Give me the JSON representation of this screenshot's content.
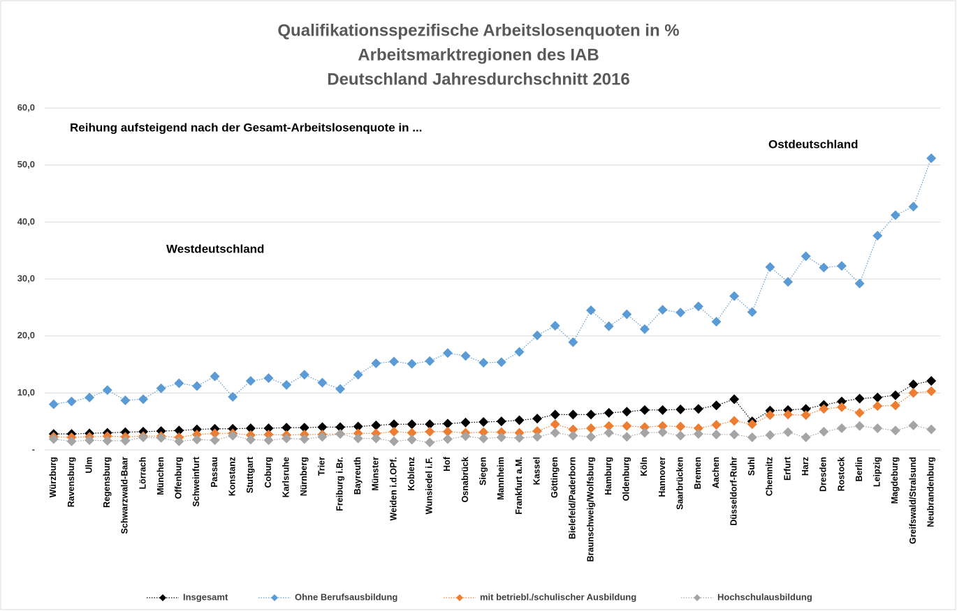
{
  "chart_data": {
    "type": "line",
    "title": [
      "Qualifikationsspezifische Arbeitslosenquoten in %",
      "Arbeitsmarktregionen des IAB",
      "Deutschland Jahresdurchschnitt 2016"
    ],
    "annotations": [
      "Reihung aufsteigend nach der Gesamt-Arbeitslosenquote in ...",
      "Westdeutschland",
      "Ostdeutschland"
    ],
    "categories": [
      "Würzburg",
      "Ravensburg",
      "Ulm",
      "Regensburg",
      "Schwarzwald-Baar",
      "Lörrach",
      "München",
      "Offenburg",
      "Schweinfurt",
      "Passau",
      "Konstanz",
      "Stuttgart",
      "Coburg",
      "Karlsruhe",
      "Nürnberg",
      "Trier",
      "Freiburg i.Br.",
      "Bayreuth",
      "Münster",
      "Weiden i.d.OPf.",
      "Koblenz",
      "Wunsiedel i.F.",
      "Hof",
      "Osnabrück",
      "Siegen",
      "Mannheim",
      "Frankfurt a.M.",
      "Kassel",
      "Göttingen",
      "Bielefeld/Paderborn",
      "Braunschweig/Wolfsburg",
      "Hamburg",
      "Oldenburg",
      "Köln",
      "Hannover",
      "Saarbrücken",
      "Bremen",
      "Aachen",
      "Düsseldorf-Ruhr",
      "Suhl",
      "Chemnitz",
      "Erfurt",
      "Harz",
      "Dresden",
      "Rostock",
      "Berlin",
      "Leipzig",
      "Magdeburg",
      "Greifswald/Stralsund",
      "Neubrandenburg"
    ],
    "series": [
      {
        "name": "Insgesamt",
        "color": "#000000",
        "values": [
          2.8,
          2.8,
          2.9,
          3.0,
          3.1,
          3.2,
          3.3,
          3.4,
          3.6,
          3.7,
          3.7,
          3.8,
          3.8,
          3.9,
          3.9,
          4.0,
          4.0,
          4.1,
          4.3,
          4.5,
          4.5,
          4.5,
          4.6,
          4.8,
          4.9,
          5.0,
          5.2,
          5.5,
          6.2,
          6.2,
          6.2,
          6.5,
          6.7,
          7.0,
          7.0,
          7.1,
          7.2,
          7.8,
          8.9,
          5.0,
          6.9,
          7.0,
          7.2,
          7.9,
          8.5,
          9.0,
          9.2,
          9.6,
          11.5,
          12.1
        ]
      },
      {
        "name": "Ohne Berufsausbildung",
        "color": "#5b9bd5",
        "values": [
          8.0,
          8.5,
          9.2,
          10.5,
          8.7,
          8.9,
          10.8,
          11.7,
          11.2,
          12.9,
          9.3,
          12.1,
          12.6,
          11.4,
          13.2,
          11.8,
          10.7,
          13.2,
          15.2,
          15.5,
          15.1,
          15.6,
          17.0,
          16.5,
          15.3,
          15.4,
          17.2,
          20.1,
          21.8,
          18.9,
          24.5,
          21.7,
          23.8,
          21.2,
          24.6,
          24.1,
          25.2,
          22.5,
          27.0,
          24.2,
          32.1,
          29.5,
          34.0,
          32.0,
          32.3,
          29.2,
          37.6,
          41.2,
          42.7,
          51.2
        ]
      },
      {
        "name": "mit betriebl./schulischer Ausbildung",
        "color": "#ed7d31",
        "values": [
          2.3,
          2.2,
          2.3,
          2.4,
          2.3,
          2.4,
          2.4,
          2.2,
          2.7,
          2.9,
          2.9,
          2.6,
          2.7,
          2.6,
          2.7,
          2.7,
          2.8,
          2.9,
          2.9,
          3.2,
          3.0,
          3.2,
          3.2,
          3.0,
          3.1,
          3.1,
          3.0,
          3.3,
          4.5,
          3.6,
          3.8,
          4.2,
          4.2,
          4.0,
          4.2,
          4.1,
          3.8,
          4.4,
          5.1,
          4.5,
          6.1,
          6.2,
          6.1,
          7.2,
          7.5,
          6.5,
          7.7,
          7.8,
          10.0,
          10.3
        ]
      },
      {
        "name": "Hochschulausbildung",
        "color": "#a5a5a5",
        "values": [
          1.9,
          1.5,
          1.7,
          1.6,
          1.6,
          2.2,
          2.1,
          1.5,
          1.8,
          1.7,
          2.5,
          1.8,
          1.7,
          2.0,
          1.9,
          2.3,
          2.8,
          2.0,
          2.0,
          1.5,
          1.8,
          1.3,
          1.9,
          2.4,
          2.0,
          2.2,
          2.1,
          2.3,
          3.0,
          2.5,
          2.3,
          3.0,
          2.3,
          3.0,
          3.1,
          2.5,
          2.8,
          2.7,
          2.7,
          2.2,
          2.6,
          3.1,
          2.2,
          3.2,
          3.8,
          4.2,
          3.8,
          3.4,
          4.3,
          3.6
        ]
      }
    ],
    "ylim": [
      0,
      60
    ],
    "yticks": [
      {
        "value": 0,
        "label": "-"
      },
      {
        "value": 10,
        "label": "10,0"
      },
      {
        "value": 20,
        "label": "20,0"
      },
      {
        "value": 30,
        "label": "30,0"
      },
      {
        "value": 40,
        "label": "40,0"
      },
      {
        "value": 50,
        "label": "50,0"
      },
      {
        "value": 60,
        "label": "60,0"
      }
    ],
    "grid": true,
    "legend": "bottom"
  }
}
